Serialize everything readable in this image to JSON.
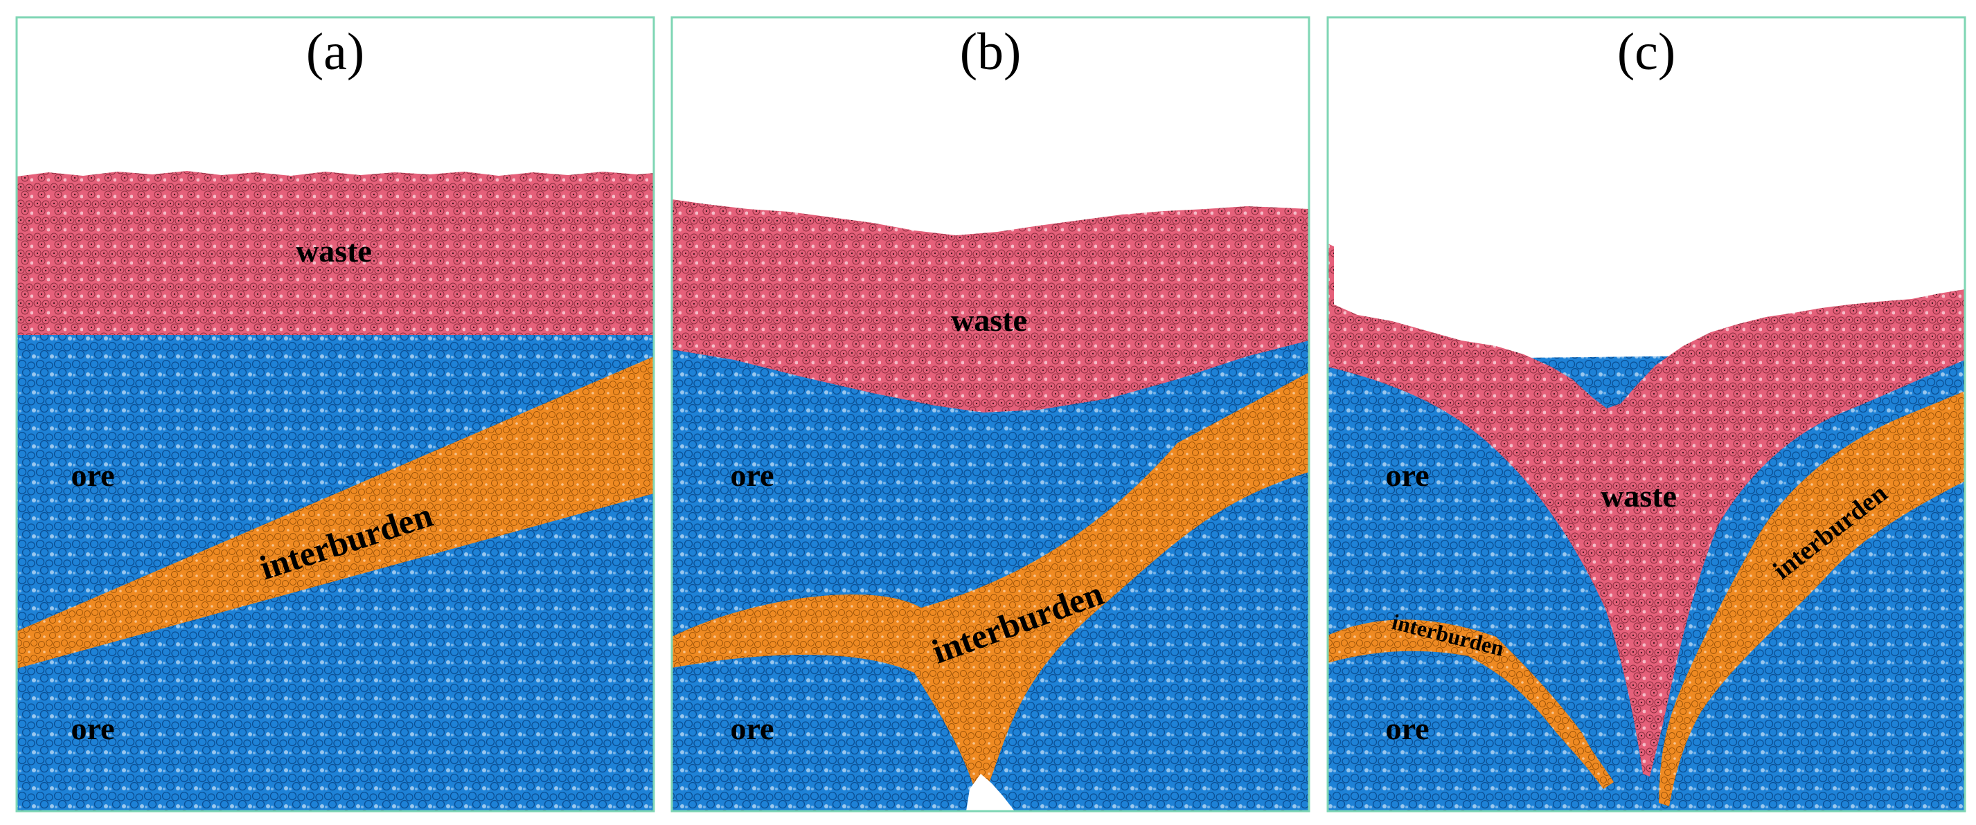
{
  "colors": {
    "waste": "#e5607a",
    "ore": "#1e82d7",
    "interburden": "#ef8a22",
    "panel_border": "#7fd6b4"
  },
  "panels": [
    {
      "title": "(a)",
      "labels": {
        "waste": "waste",
        "ore_upper": "ore",
        "ore_lower": "ore",
        "interburden": "interburden"
      }
    },
    {
      "title": "(b)",
      "labels": {
        "waste": "waste",
        "ore_upper": "ore",
        "ore_lower": "ore",
        "interburden": "interburden"
      }
    },
    {
      "title": "(c)",
      "labels": {
        "waste": "waste",
        "ore_upper": "ore",
        "ore_lower": "ore",
        "interburden_left": "interburden",
        "interburden_right": "interburden"
      }
    }
  ]
}
